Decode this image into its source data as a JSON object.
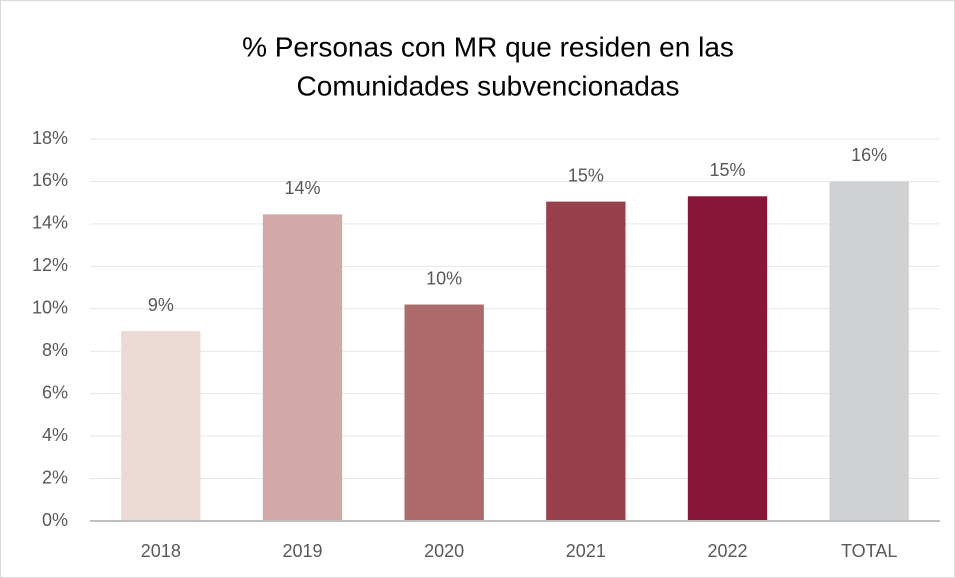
{
  "chart_data": {
    "type": "bar",
    "title": [
      "% Personas con MR que residen en las",
      "Comunidades subvencionadas"
    ],
    "categories": [
      "2018",
      "2019",
      "2020",
      "2021",
      "2022",
      "TOTAL"
    ],
    "values": [
      8.95,
      14.45,
      10.2,
      15.05,
      15.3,
      16.0
    ],
    "value_labels": [
      "9%",
      "14%",
      "10%",
      "15%",
      "15%",
      "16%"
    ],
    "colors": [
      "#ecd9d6",
      "#d2a9a7",
      "#ad6b6b",
      "#98404b",
      "#891538",
      "#d0d1d3"
    ],
    "ylim": [
      0,
      18
    ],
    "yticks": [
      {
        "value": 0,
        "label": "0%"
      },
      {
        "value": 2,
        "label": "2%"
      },
      {
        "value": 4,
        "label": "4%"
      },
      {
        "value": 6,
        "label": "6%"
      },
      {
        "value": 8,
        "label": "8%"
      },
      {
        "value": 10,
        "label": "10%"
      },
      {
        "value": 12,
        "label": "12%"
      },
      {
        "value": 14,
        "label": "14%"
      },
      {
        "value": 16,
        "label": "16%"
      },
      {
        "value": 18,
        "label": "18%"
      }
    ],
    "grid": true
  }
}
